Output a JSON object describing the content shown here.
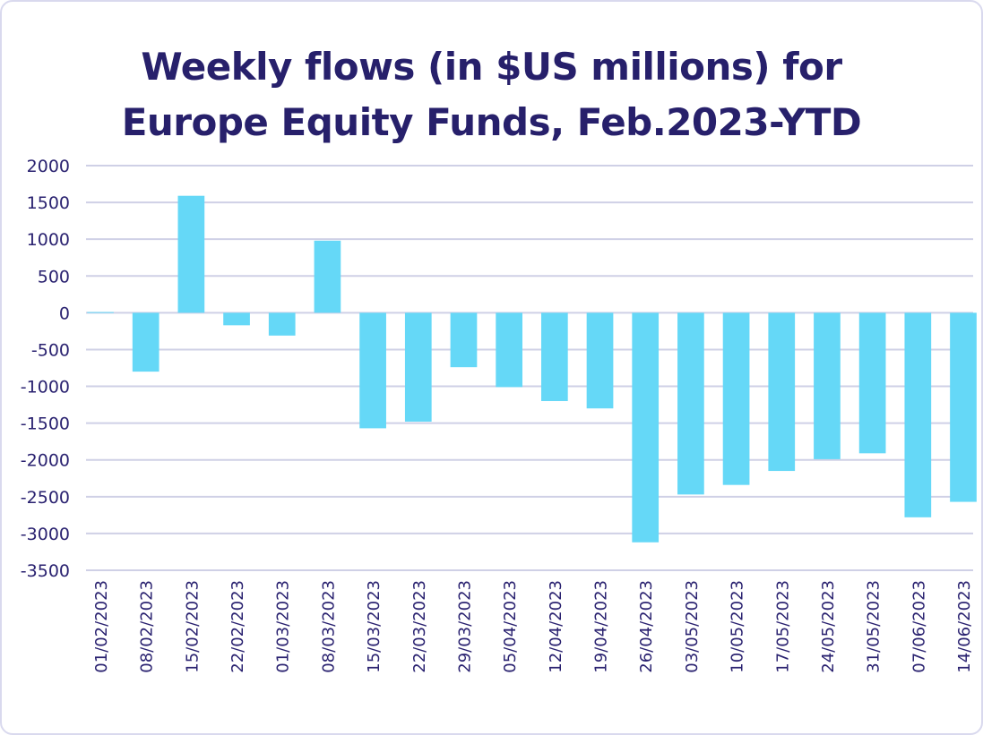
{
  "chart_data": {
    "type": "bar",
    "title_lines": [
      "Weekly flows (in $US millions) for",
      "Europe Equity Funds, Feb.2023-YTD"
    ],
    "xlabel": "",
    "ylabel": "",
    "ylim": [
      -3500,
      2000
    ],
    "yticks": [
      2000,
      1500,
      1000,
      500,
      0,
      -500,
      -1000,
      -1500,
      -2000,
      -2500,
      -3000,
      -3500
    ],
    "grid": true,
    "legend": "none",
    "categories": [
      "01/02/2023",
      "08/02/2023",
      "15/02/2023",
      "22/02/2023",
      "01/03/2023",
      "08/03/2023",
      "15/03/2023",
      "22/03/2023",
      "29/03/2023",
      "05/04/2023",
      "12/04/2023",
      "19/04/2023",
      "26/04/2023",
      "03/05/2023",
      "10/05/2023",
      "17/05/2023",
      "24/05/2023",
      "31/05/2023",
      "07/06/2023",
      "14/06/2023"
    ],
    "values": [
      10,
      -800,
      1590,
      -170,
      -310,
      980,
      -1570,
      -1480,
      -740,
      -1010,
      -1200,
      -1300,
      -3120,
      -2470,
      -2340,
      -2150,
      -1990,
      -1910,
      -2780,
      -2570
    ],
    "colors": {
      "bar": "#65d8f7",
      "grid": "#cfd0e6",
      "text": "#2a2270",
      "title": "#27206b",
      "frame": "#d9d9ee"
    }
  }
}
